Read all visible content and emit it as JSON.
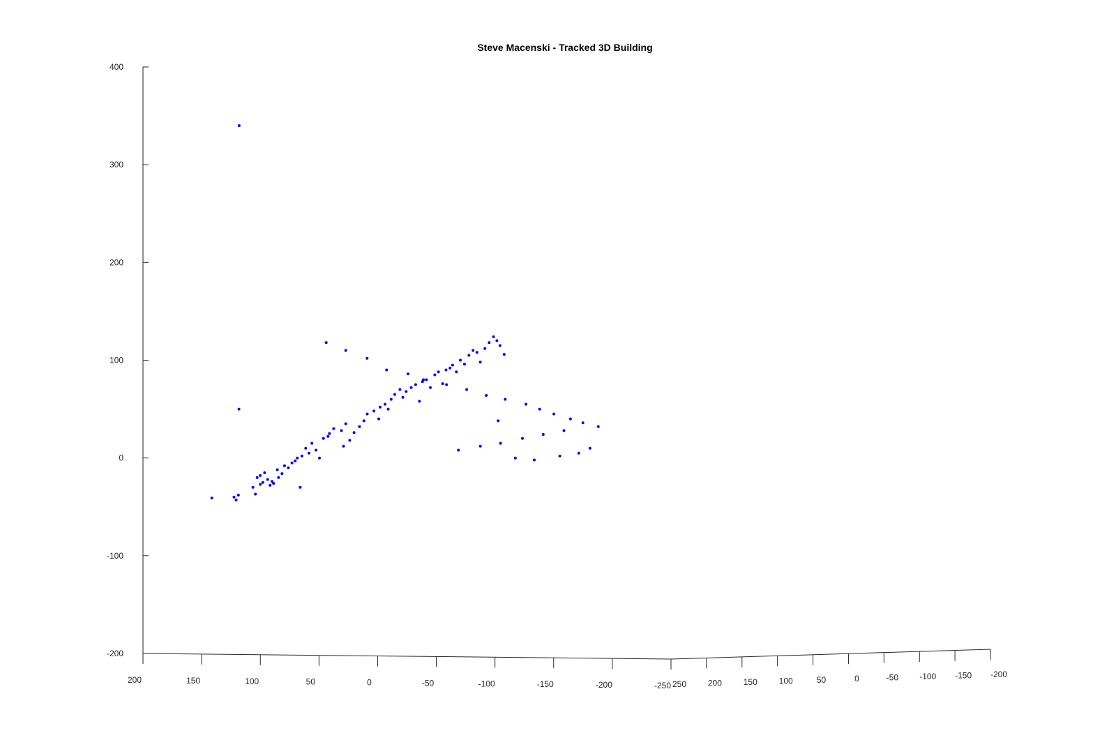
{
  "chart_data": {
    "type": "scatter",
    "title": "Steve Macenski - Tracked 3D Building",
    "xlabel": "",
    "ylabel": "",
    "zlabel": "",
    "grid": false,
    "xlim": [
      -250,
      200
    ],
    "ylim": [
      -200,
      250
    ],
    "zlim": [
      -200,
      400
    ],
    "x_ticks": [
      "200",
      "150",
      "100",
      "50",
      "0",
      "-50",
      "-100",
      "-150",
      "-200",
      "-250"
    ],
    "y_ticks": [
      "250",
      "200",
      "150",
      "100",
      "50",
      "0",
      "-50",
      "-100",
      "-150",
      "-200"
    ],
    "z_ticks": [
      "400",
      "300",
      "200",
      "100",
      "0",
      "-100",
      "-200"
    ],
    "marker_color": "#0000ff",
    "series": [
      {
        "name": "",
        "points_screen_units": "approximate (x,y,z) reconstructed from projected view",
        "x": [
          141.3,
          122.4,
          120.6,
          118.7,
          104.2,
          106.3,
          100.0,
          102.7,
          97.9,
          100.1,
          93.8,
          91.7,
          96.3,
          90.0,
          84.5,
          88.7,
          81.5,
          85.5,
          79.4,
          73.0,
          76.1,
          70.3,
          68.5,
          64.5,
          66.0,
          58.5,
          61.3,
          56.0,
          49.6,
          52.6,
          46.2,
          41.1,
          37.5,
          42.3,
          30.9,
          27.2,
          23.8,
          29.1,
          20.1,
          11.7,
          8.9,
          15.5,
          3.2,
          -2.1,
          -0.9,
          -6.3,
          -11.5,
          -14.6,
          -9.0,
          -19.0,
          -24.3,
          -21.5,
          -28.6,
          -32.4,
          -35.6,
          -38.2,
          -41.5,
          -44.9,
          -48.7,
          -51.8,
          -55.4,
          -58.3,
          -61.7,
          -63.9,
          -67.1,
          -70.5,
          -74.0,
          -77.8,
          -81.3,
          -84.6,
          -87.5,
          -91.4,
          -95.0,
          -98.7,
          -101.6,
          -104.3,
          -107.8,
          -110.9,
          -114.2,
          -117.8,
          -121.1,
          -124.7,
          -127.3,
          -131.2,
          -134.6,
          -137.9,
          -141.1,
          -144.6,
          -146.9,
          -149.3,
          -152.1,
          -154.2,
          -156.8,
          -151.0,
          -147.5,
          -144.0,
          -140.3,
          -136.9,
          -133.2,
          -153.5,
          -150.3,
          -146.0,
          -142.8,
          -139.9,
          -155.4,
          118.0,
          118.2
        ],
        "y": [
          0,
          0,
          0,
          0,
          0,
          0,
          0,
          0,
          0,
          0,
          0,
          0,
          0,
          0,
          0,
          0,
          0,
          0,
          0,
          0,
          0,
          0,
          0,
          0,
          0,
          0,
          0,
          0,
          0,
          0,
          0,
          0,
          0,
          0,
          0,
          0,
          0,
          0,
          0,
          0,
          0,
          0,
          0,
          0,
          0,
          0,
          0,
          0,
          0,
          0,
          0,
          0,
          0,
          0,
          0,
          0,
          0,
          0,
          0,
          0,
          0,
          0,
          0,
          0,
          0,
          0,
          0,
          0,
          0,
          0,
          0,
          0,
          0,
          0,
          0,
          0,
          0,
          0,
          0,
          0,
          0,
          0,
          0,
          0,
          0,
          0,
          0,
          0,
          0,
          0,
          0,
          0,
          0,
          0,
          0,
          0,
          0,
          0,
          0,
          0,
          0,
          0,
          0,
          0,
          0,
          0,
          0
        ],
        "z": [
          -41,
          -40,
          -43,
          -38,
          -37,
          -30,
          -27,
          -20,
          -25,
          -18,
          -22,
          -28,
          -15,
          -24,
          -20,
          -26,
          -16,
          -12,
          -8,
          -5,
          -10,
          -3,
          0,
          2,
          -30,
          5,
          10,
          15,
          0,
          8,
          20,
          25,
          30,
          22,
          28,
          35,
          18,
          12,
          26,
          38,
          45,
          32,
          48,
          52,
          40,
          55,
          60,
          65,
          50,
          70,
          68,
          62,
          72,
          75,
          58,
          78,
          80,
          72,
          85,
          88,
          76,
          90,
          92,
          95,
          88,
          100,
          96,
          105,
          110,
          108,
          98,
          112,
          118,
          124,
          120,
          115,
          106,
          118,
          110,
          102,
          90,
          86,
          80,
          75,
          70,
          64,
          60,
          55,
          50,
          45,
          40,
          36,
          32,
          28,
          24,
          20,
          15,
          12,
          8,
          5,
          2,
          -2,
          0,
          38,
          10,
          340,
          50
        ]
      }
    ],
    "projection_note": "3D view; left floor axis labels 200 to -250, right floor axis labels 250 to -200, vertical axis -200 to 400"
  }
}
